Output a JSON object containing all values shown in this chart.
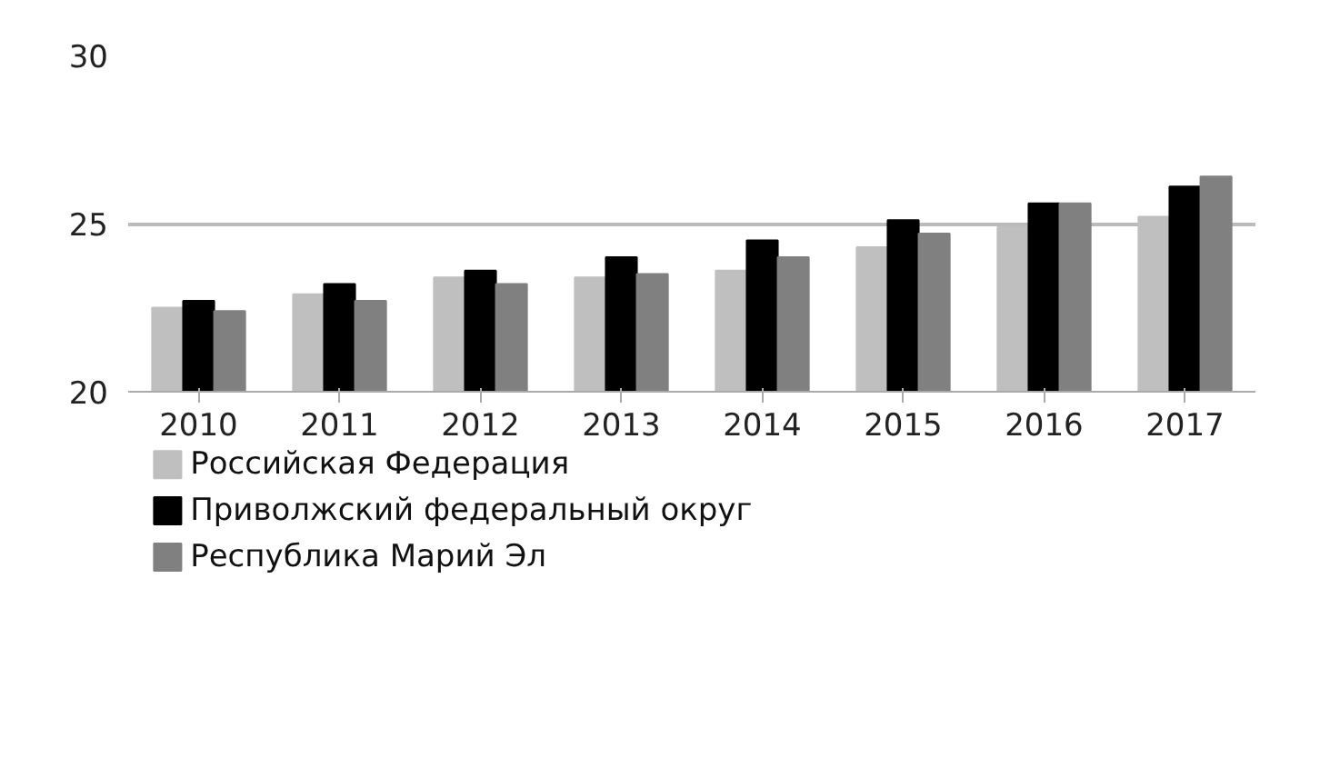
{
  "chart_data": {
    "type": "bar",
    "categories": [
      "2010",
      "2011",
      "2012",
      "2013",
      "2014",
      "2015",
      "2016",
      "2017"
    ],
    "series": [
      {
        "name": "Российская Федерация",
        "color": "#bfbfbf",
        "values": [
          22.5,
          22.9,
          23.4,
          23.4,
          23.6,
          24.3,
          24.9,
          25.2
        ]
      },
      {
        "name": "Приволжский федеральный округ",
        "color": "#000000",
        "values": [
          22.7,
          23.2,
          23.6,
          24.0,
          24.5,
          25.1,
          25.6,
          26.1
        ]
      },
      {
        "name": "Республика Марий Эл",
        "color": "#808080",
        "values": [
          22.4,
          22.7,
          23.2,
          23.5,
          24.0,
          24.7,
          25.6,
          26.4
        ]
      }
    ],
    "ylim": [
      20,
      30
    ],
    "yticks": [
      20,
      25,
      30
    ],
    "grid": "y",
    "legend": "bottom"
  }
}
